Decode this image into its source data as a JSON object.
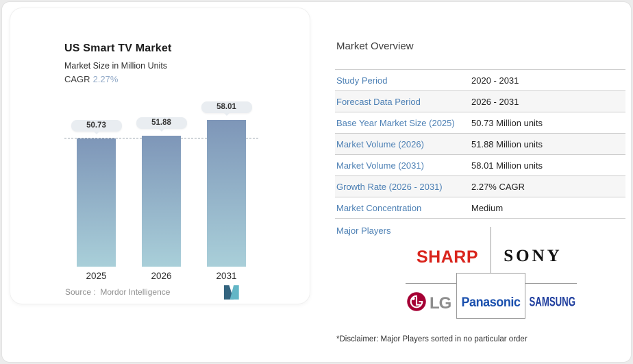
{
  "chart_card": {
    "title": "US Smart TV Market",
    "subtitle": "Market Size in Million Units",
    "cagr_label": "CAGR",
    "cagr_value": "2.27%",
    "source_text": "Source :  Mordor Intelligence",
    "logo_name": "mordor-intelligence-logo"
  },
  "chart_data": {
    "type": "bar",
    "categories": [
      "2025",
      "2026",
      "2031"
    ],
    "values": [
      50.73,
      51.88,
      58.01
    ],
    "data_labels": [
      "50.73",
      "51.88",
      "58.01"
    ],
    "title": "US Smart TV Market",
    "xlabel": "",
    "ylabel": "Market Size in Million Units",
    "ylim": [
      0,
      60
    ],
    "grid": false,
    "legend": false,
    "baseline_value": 50.73,
    "baseline_style": "dashed",
    "bar_gradient_top": "#7e96b8",
    "bar_gradient_bottom": "#a9cfd9"
  },
  "overview": {
    "title": "Market Overview",
    "rows": [
      {
        "label": "Study Period",
        "value": "2020 - 2031"
      },
      {
        "label": "Forecast Data Period",
        "value": "2026 - 2031"
      },
      {
        "label": "Base Year Market Size (2025)",
        "value": "50.73 Million units"
      },
      {
        "label": "Market Volume (2026)",
        "value": "51.88 Million units"
      },
      {
        "label": "Market Volume (2031)",
        "value": "58.01 Million units"
      },
      {
        "label": "Growth Rate (2026 - 2031)",
        "value": "2.27% CAGR"
      },
      {
        "label": "Market Concentration",
        "value": "Medium"
      }
    ],
    "major_players_label": "Major Players",
    "players": {
      "sharp": "SHARP",
      "sony": "SONY",
      "lg": "LG",
      "panasonic": "Panasonic",
      "samsung": "SAMSUNG"
    },
    "disclaimer": "*Disclaimer: Major Players sorted in no particular order"
  },
  "colors": {
    "label_blue": "#4e81b5",
    "cagr_blue": "#92aac8",
    "sharp_red": "#d9251d",
    "sony_black": "#121212",
    "lg_magenta": "#a50034",
    "panasonic_blue": "#1a50ae",
    "samsung_blue": "#1f3e9e",
    "divider_gray": "#9c9c9c"
  }
}
